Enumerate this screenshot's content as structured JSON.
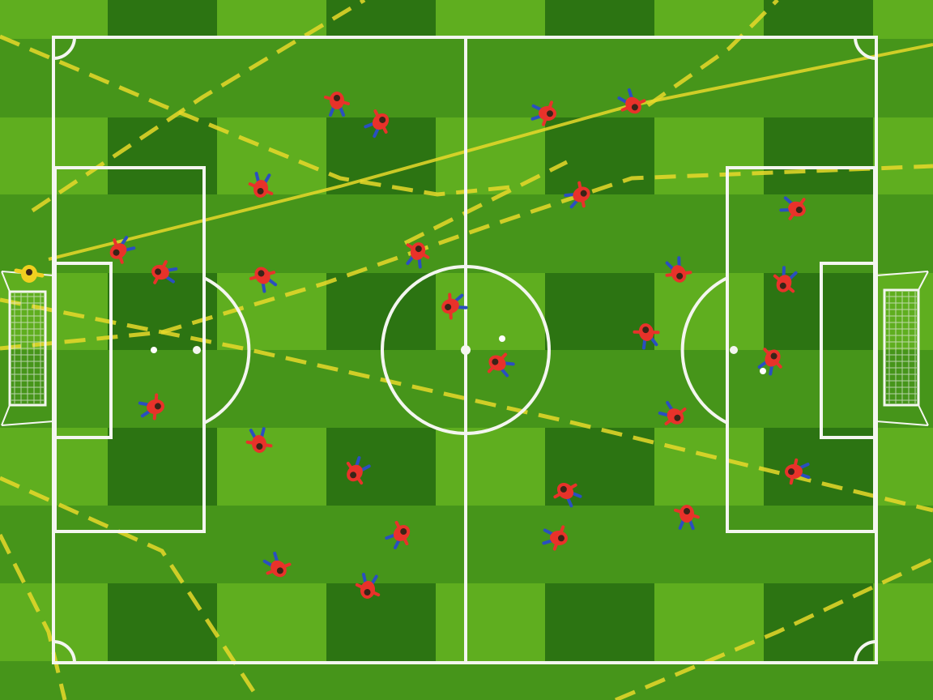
{
  "scene": {
    "description_type": "aerial soccer pitch",
    "colors": {
      "grass_light": "#5fae1f",
      "grass_mid": "#46951a",
      "grass_dark": "#2c7412",
      "lines": "#f4f6f0",
      "yellow_paths": "#e8d82a",
      "player_shirt": "#e8322a",
      "player_shorts": "#2a4fc0",
      "goalkeeper": "#f0d020"
    }
  }
}
